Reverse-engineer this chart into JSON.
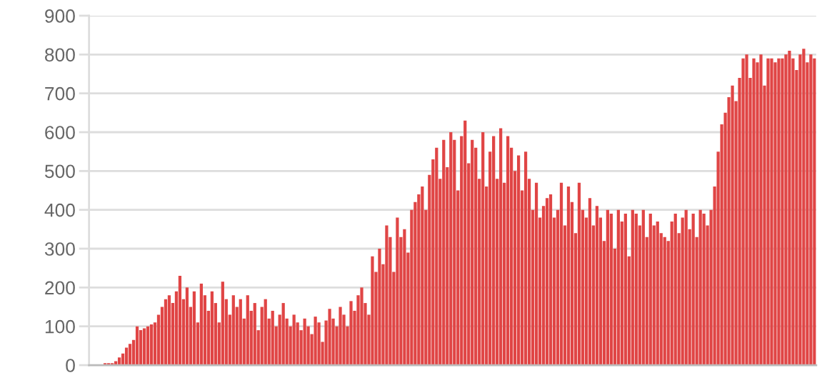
{
  "chart_data": {
    "type": "bar",
    "categories": [
      null,
      null,
      null,
      null,
      null,
      null,
      null,
      null,
      null,
      null,
      null,
      null,
      null,
      null,
      null,
      null,
      null,
      null,
      null,
      null,
      null,
      null,
      null,
      null,
      null,
      null,
      null,
      null,
      null,
      null,
      null,
      null,
      null,
      null,
      null,
      null,
      null,
      null,
      null,
      null,
      null,
      null,
      null,
      null,
      null,
      null,
      null,
      null,
      null,
      null,
      null,
      null,
      null,
      null,
      null,
      null,
      null,
      null,
      null,
      null,
      null,
      null,
      null,
      null,
      null,
      null,
      null,
      null,
      null,
      null,
      null,
      null,
      null,
      null,
      null,
      null,
      null,
      null,
      null,
      null,
      null,
      null,
      null,
      null,
      null,
      null,
      null,
      null,
      null,
      null,
      null,
      null,
      null,
      null,
      null,
      null,
      null,
      null,
      null,
      null,
      null,
      null,
      null,
      null,
      null,
      null,
      null,
      null,
      null,
      null,
      null,
      null,
      null,
      null,
      null,
      null,
      null,
      null,
      null,
      null,
      null,
      null,
      null,
      null,
      null,
      null,
      null,
      null,
      null,
      null,
      null,
      null,
      null,
      null,
      null,
      null,
      null,
      null,
      null,
      null,
      null,
      null,
      null,
      null,
      null,
      null,
      null,
      null,
      null,
      null,
      null,
      null,
      null,
      null,
      null,
      null,
      null,
      null,
      null,
      null,
      null,
      null,
      null,
      null,
      null,
      null,
      null,
      null,
      null,
      null,
      null,
      null,
      null,
      null,
      null,
      null,
      null,
      null,
      null,
      null,
      null,
      null,
      null,
      null,
      null,
      null,
      null,
      null,
      null,
      null,
      null,
      null,
      null,
      null,
      null,
      null,
      null,
      null,
      null,
      null,
      null,
      null,
      null,
      null
    ],
    "series": [
      {
        "color": "#e04545",
        "values": [
          0,
          0,
          0,
          2,
          5,
          5,
          5,
          10,
          20,
          30,
          45,
          55,
          65,
          100,
          90,
          95,
          100,
          105,
          110,
          130,
          150,
          170,
          180,
          160,
          190,
          230,
          170,
          200,
          150,
          190,
          110,
          210,
          180,
          140,
          190,
          160,
          110,
          215,
          170,
          130,
          180,
          150,
          170,
          120,
          180,
          140,
          160,
          90,
          150,
          170,
          120,
          140,
          100,
          130,
          160,
          120,
          100,
          130,
          110,
          90,
          120,
          100,
          80,
          125,
          110,
          60,
          115,
          145,
          120,
          100,
          150,
          130,
          100,
          165,
          140,
          180,
          200,
          160,
          130,
          280,
          240,
          300,
          260,
          360,
          330,
          240,
          380,
          330,
          350,
          290,
          400,
          420,
          440,
          460,
          400,
          490,
          530,
          560,
          480,
          580,
          510,
          600,
          580,
          450,
          590,
          630,
          520,
          580,
          560,
          480,
          600,
          460,
          550,
          590,
          480,
          610,
          470,
          590,
          560,
          500,
          540,
          450,
          550,
          480,
          400,
          470,
          380,
          410,
          430,
          440,
          380,
          400,
          470,
          360,
          460,
          420,
          340,
          470,
          400,
          380,
          430,
          360,
          410,
          380,
          320,
          400,
          390,
          300,
          400,
          370,
          390,
          280,
          400,
          390,
          360,
          400,
          330,
          390,
          360,
          370,
          340,
          330,
          320,
          370,
          390,
          340,
          380,
          400,
          350,
          390,
          330,
          400,
          390,
          360,
          400,
          460,
          550,
          620,
          650,
          690,
          720,
          680,
          740,
          790,
          800,
          740,
          790,
          780,
          800,
          720,
          790,
          790,
          780,
          790,
          790,
          800,
          810,
          790,
          760,
          800,
          815,
          780,
          800,
          790
        ]
      }
    ],
    "ylim": [
      0,
      900
    ],
    "yticks": [
      0,
      100,
      200,
      300,
      400,
      500,
      600,
      700,
      800,
      900
    ],
    "grid": "y",
    "tick_labels": "y"
  }
}
